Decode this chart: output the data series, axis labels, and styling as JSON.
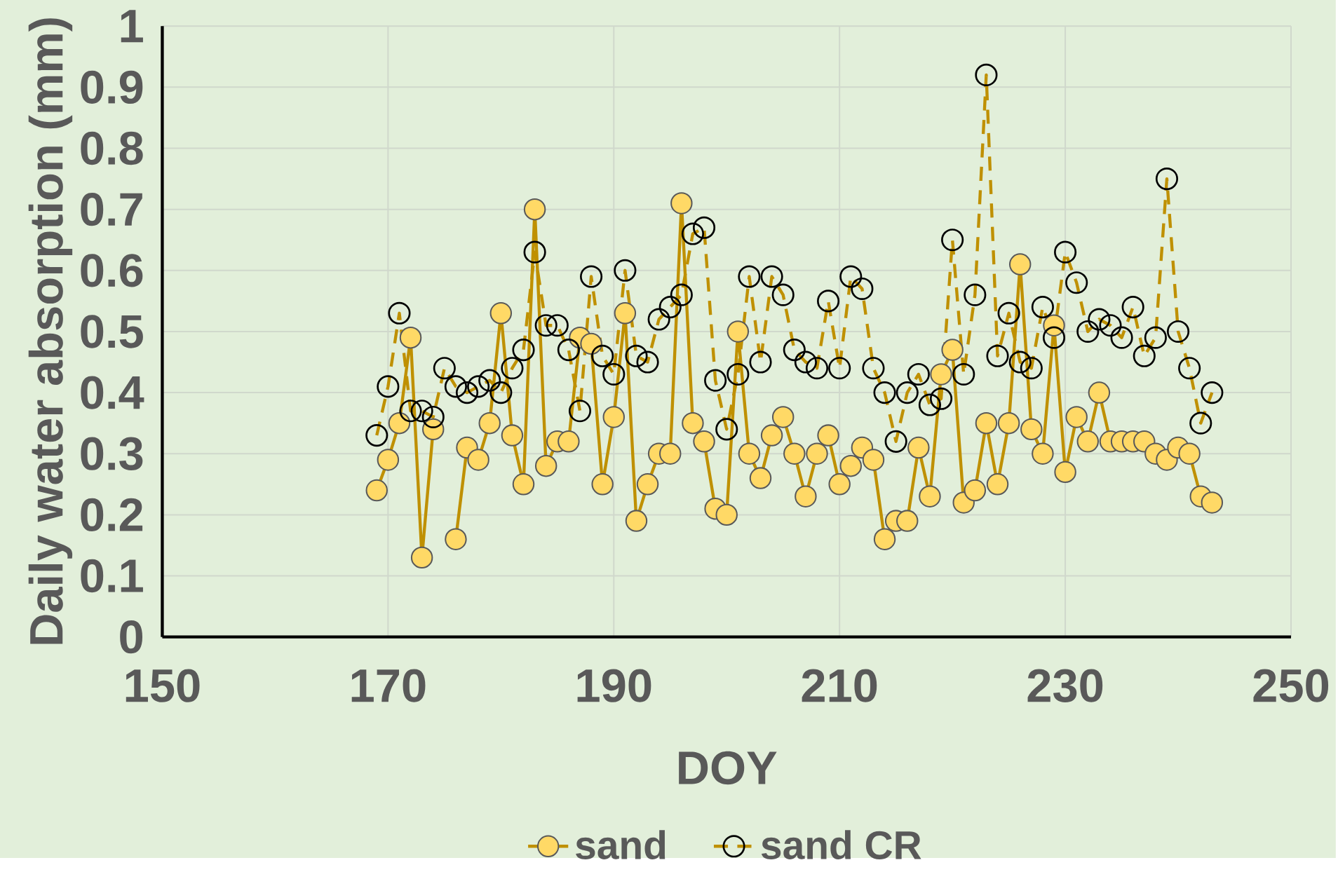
{
  "chart_data": {
    "type": "line",
    "xlabel": "DOY",
    "ylabel": "Daily  water absorption (mm)",
    "x": [
      169,
      170,
      171,
      172,
      173,
      174,
      175,
      176,
      177,
      178,
      179,
      180,
      181,
      182,
      183,
      184,
      185,
      186,
      187,
      188,
      189,
      190,
      191,
      192,
      193,
      194,
      195,
      196,
      197,
      198,
      199,
      200,
      201,
      202,
      203,
      204,
      205,
      206,
      207,
      208,
      209,
      210,
      211,
      212,
      213,
      214,
      215,
      216,
      217,
      218,
      219,
      220,
      221,
      222,
      223,
      224,
      225,
      226,
      227,
      228,
      229,
      230,
      231,
      232,
      233,
      234,
      235,
      236,
      237,
      238,
      239,
      240,
      241,
      242,
      243
    ],
    "series": [
      {
        "name": "sand",
        "color": "#bf9000",
        "line_style": "solid",
        "values": [
          0.24,
          0.29,
          0.35,
          0.49,
          0.13,
          0.34,
          null,
          0.16,
          0.31,
          0.29,
          0.35,
          0.53,
          0.33,
          0.25,
          0.7,
          0.28,
          0.32,
          0.32,
          0.49,
          0.48,
          0.25,
          0.36,
          0.53,
          0.19,
          0.25,
          0.3,
          0.3,
          0.71,
          0.35,
          0.32,
          0.21,
          0.2,
          0.5,
          0.3,
          0.26,
          0.33,
          0.36,
          0.3,
          0.23,
          0.3,
          0.33,
          0.25,
          0.28,
          0.31,
          0.29,
          0.16,
          0.19,
          0.19,
          0.31,
          0.23,
          0.43,
          0.47,
          0.22,
          0.24,
          0.35,
          0.25,
          0.35,
          0.61,
          0.34,
          0.3,
          0.51,
          0.27,
          0.36,
          0.32,
          0.4,
          0.32,
          0.32,
          0.32,
          0.32,
          0.3,
          0.29,
          0.31,
          0.3,
          0.23,
          0.22
        ]
      },
      {
        "name": "sand CR",
        "color": "#bf9000",
        "line_style": "dashed",
        "values": [
          0.33,
          0.41,
          0.53,
          0.37,
          0.37,
          0.36,
          0.44,
          0.41,
          0.4,
          0.41,
          0.42,
          0.4,
          0.44,
          0.47,
          0.63,
          0.51,
          0.51,
          0.47,
          0.37,
          0.59,
          0.46,
          0.43,
          0.6,
          0.46,
          0.45,
          0.52,
          0.54,
          0.56,
          0.66,
          0.67,
          0.42,
          0.34,
          0.43,
          0.59,
          0.45,
          0.59,
          0.56,
          0.47,
          0.45,
          0.44,
          0.55,
          0.44,
          0.59,
          0.57,
          0.44,
          0.4,
          0.32,
          0.4,
          0.43,
          0.38,
          0.39,
          0.65,
          0.43,
          0.56,
          0.92,
          0.46,
          0.53,
          0.45,
          0.44,
          0.54,
          0.49,
          0.63,
          0.58,
          0.5,
          0.52,
          0.51,
          0.49,
          0.54,
          0.46,
          0.49,
          0.75,
          0.5,
          0.44,
          0.35,
          0.4
        ]
      }
    ],
    "xlim": [
      150,
      250
    ],
    "xticks": [
      150,
      170,
      190,
      210,
      230,
      250
    ],
    "ylim": [
      0,
      1
    ],
    "yticks": [
      0,
      0.1,
      0.2,
      0.3,
      0.4,
      0.5,
      0.6,
      0.7,
      0.8,
      0.9,
      1
    ],
    "grid": true,
    "legend": "bottom",
    "marker": "circle"
  }
}
